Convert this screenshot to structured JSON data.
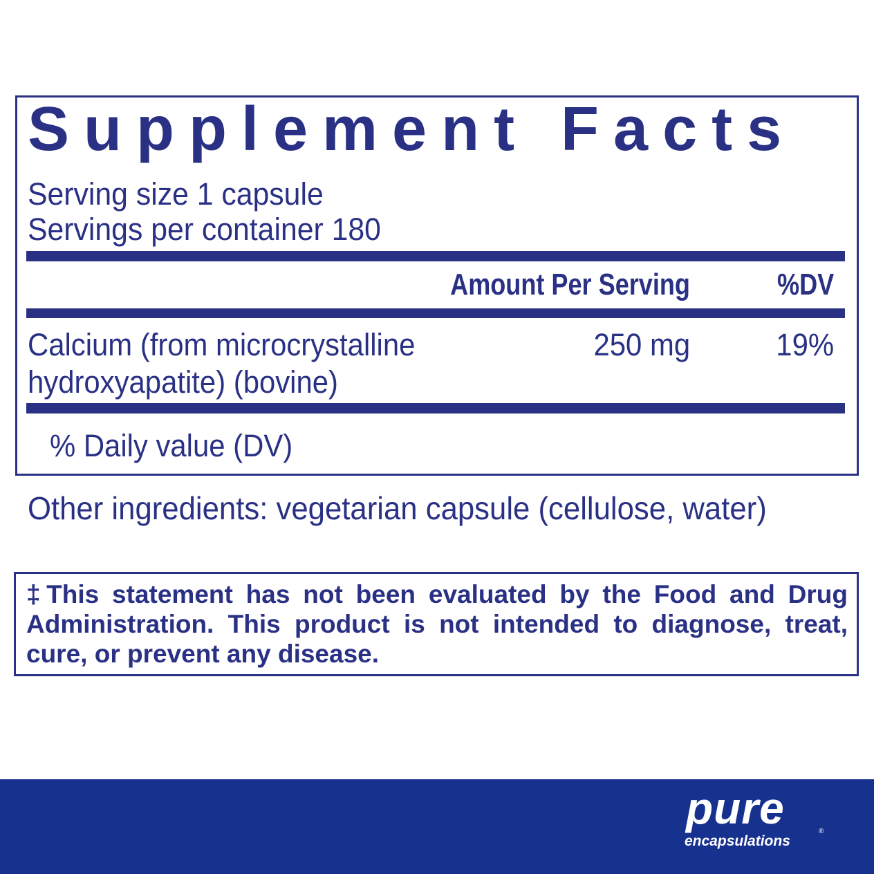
{
  "label": {
    "title": "Supplement Facts",
    "serving_size": "Serving size  1 capsule",
    "servings_per_container": "Servings per container  180",
    "header_amount": "Amount Per Serving",
    "header_dv": "%DV",
    "ingredients": [
      {
        "name_line1": "Calcium (from microcrystalline",
        "name_line2": "hydroxyapatite) (bovine)",
        "amount": "250 mg",
        "dv": "19%"
      }
    ],
    "footnote": "% Daily value (DV)"
  },
  "other_ingredients": "Other ingredients: vegetarian capsule (cellulose, water)",
  "disclaimer": "‡This statement has not been evaluated by the Food and Drug Administration. This product is not intended to diagnose, treat, cure, or prevent any disease.",
  "brand": {
    "logo_main": "pure",
    "logo_sub": "encapsulations",
    "registered": "®"
  },
  "colors": {
    "text": "#2a3185",
    "banner": "#17318f"
  }
}
